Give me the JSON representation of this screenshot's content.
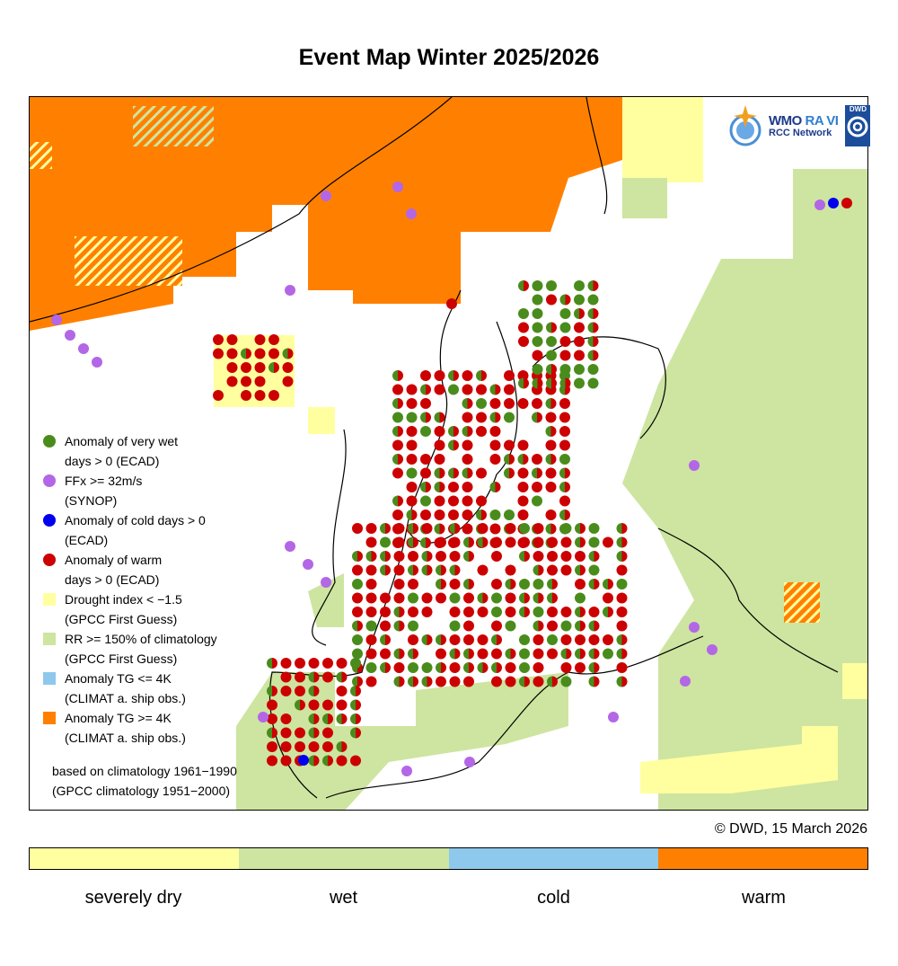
{
  "title": "Event Map Winter 2025/2026",
  "logo": {
    "wmo": "WMO",
    "ra": "RA VI",
    "network": "RCC Network",
    "dwd": "DWD"
  },
  "legend": [
    {
      "symbol": "dot",
      "color": "#4a8c1c",
      "line1": "Anomaly of very wet",
      "line2": "days > 0 (ECAD)"
    },
    {
      "symbol": "dot",
      "color": "#b366e6",
      "line1": "FFx >= 32m/s",
      "line2": "(SYNOP)"
    },
    {
      "symbol": "dot",
      "color": "#0000ee",
      "line1": "Anomaly of cold days > 0",
      "line2": "(ECAD)"
    },
    {
      "symbol": "dot",
      "color": "#cc0000",
      "line1": "Anomaly of warm",
      "line2": "days > 0 (ECAD)"
    },
    {
      "symbol": "square",
      "color": "#ffffa0",
      "line1": "Drought index < −1.5",
      "line2": "(GPCC First Guess)"
    },
    {
      "symbol": "square",
      "color": "#cde5a0",
      "line1": "RR >= 150% of climatology",
      "line2": "(GPCC First Guess)"
    },
    {
      "symbol": "square",
      "color": "#8ec8ec",
      "line1": "Anomaly TG <= 4K",
      "line2": "(CLIMAT a. ship obs.)"
    },
    {
      "symbol": "square",
      "color": "#ff8000",
      "line1": "Anomaly TG >= 4K",
      "line2": "(CLIMAT a. ship obs.)"
    }
  ],
  "climatology": {
    "line1": "based on climatology 1961−1990",
    "line2": "(GPCC climatology 1951−2000)"
  },
  "copyright": "© DWD, 15 March 2026",
  "colorbar": [
    {
      "label": "severely dry",
      "color": "#ffffa0"
    },
    {
      "label": "wet",
      "color": "#cde5a0"
    },
    {
      "label": "cold",
      "color": "#8ec8ec"
    },
    {
      "label": "warm",
      "color": "#ff8000"
    }
  ]
}
